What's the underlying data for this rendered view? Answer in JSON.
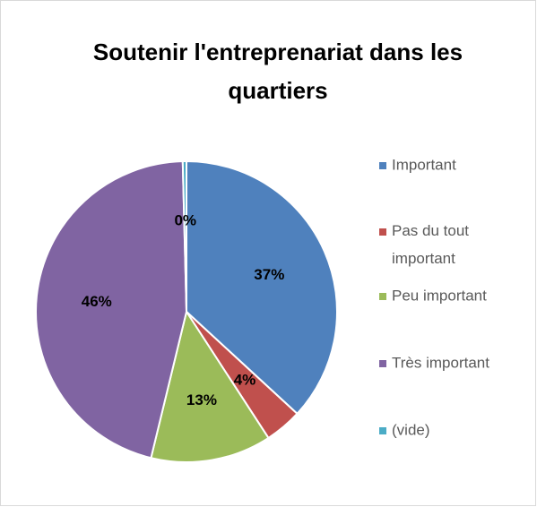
{
  "chart_data": {
    "type": "pie",
    "title": "Soutenir l'entreprenariat dans les quartiers",
    "categories": [
      "Important",
      "Pas du tout important",
      "Peu important",
      "Très important",
      "(vide)"
    ],
    "values": [
      37,
      4,
      13,
      46,
      0.4
    ],
    "value_labels": [
      "37%",
      "4%",
      "13%",
      "46%",
      "0%"
    ],
    "colors": [
      "#4f81bd",
      "#c0504d",
      "#9bbb59",
      "#8064a2",
      "#4bacc6"
    ],
    "legend": "right"
  }
}
